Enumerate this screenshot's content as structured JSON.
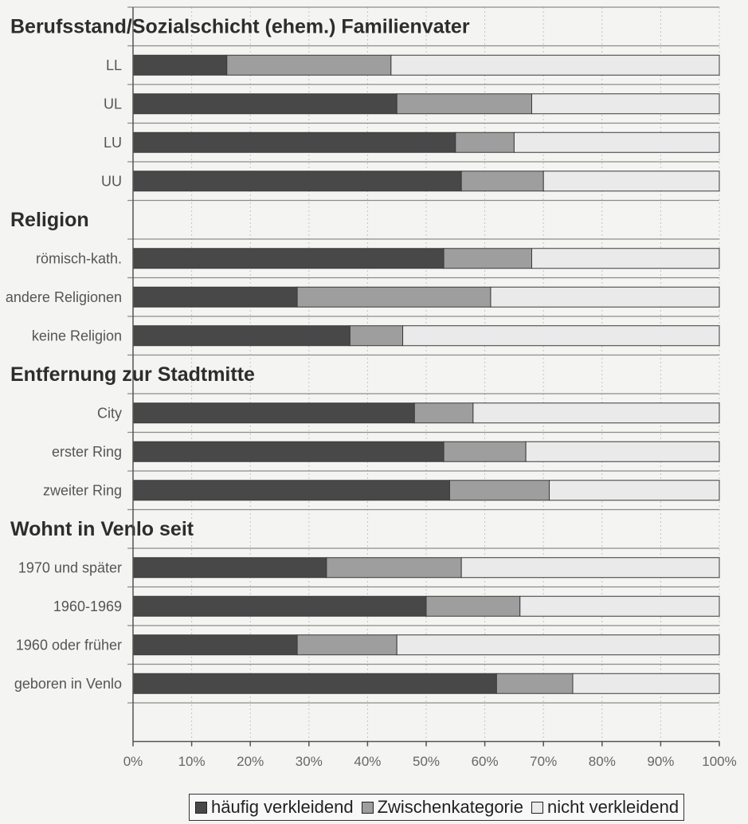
{
  "chart_data": {
    "type": "bar",
    "orientation": "horizontal",
    "stacked": "percent",
    "groups": [
      {
        "title": "Berufsstand/Sozialschicht (ehem.) Familienvater",
        "categories": [
          "LL",
          "UL",
          "LU",
          "UU"
        ]
      },
      {
        "title": "Religion",
        "categories": [
          "römisch-kath.",
          "andere Religionen",
          "keine Religion"
        ]
      },
      {
        "title": "Entfernung zur Stadtmitte",
        "categories": [
          "City",
          "erster Ring",
          "zweiter Ring"
        ]
      },
      {
        "title": "Wohnt in Venlo seit",
        "categories": [
          "1970 und später",
          "1960-1969",
          "1960 oder früher",
          "geboren in Venlo"
        ]
      }
    ],
    "series": [
      {
        "name": "häufig verkleidend",
        "color": "#484848",
        "values": [
          16,
          45,
          55,
          56,
          53,
          28,
          37,
          48,
          53,
          54,
          33,
          50,
          28,
          62
        ]
      },
      {
        "name": "Zwischenkategorie",
        "color": "#9e9e9e",
        "values": [
          28,
          23,
          10,
          14,
          15,
          33,
          9,
          10,
          14,
          17,
          23,
          16,
          17,
          13
        ]
      },
      {
        "name": "nicht verkleidend",
        "color": "#eaeaea",
        "values": [
          56,
          32,
          35,
          30,
          32,
          39,
          54,
          42,
          33,
          29,
          44,
          34,
          55,
          25
        ]
      }
    ],
    "xlim": [
      0,
      100
    ],
    "xticks": [
      "0%",
      "10%",
      "20%",
      "30%",
      "40%",
      "50%",
      "60%",
      "70%",
      "80%",
      "90%",
      "100%"
    ],
    "grid": true,
    "legend": "bottom"
  }
}
